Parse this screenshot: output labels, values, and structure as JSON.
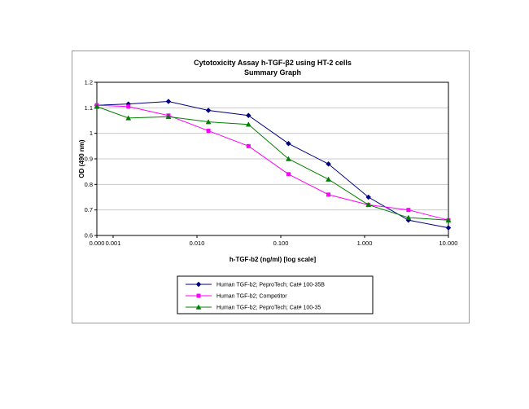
{
  "chart_data": {
    "type": "line",
    "title_line1": "Cytotoxicity Assay h-TGF-β2 using HT-2 cells",
    "title_line2": "Summary Graph",
    "xlabel": "h-TGF-b2 (ng/ml) [log scale]",
    "ylabel": "OD (490 nm)",
    "x_scale": "log",
    "ylim": [
      0.6,
      1.2
    ],
    "ytick_values": [
      1.2,
      1.1,
      1.0,
      0.9,
      0.8,
      0.7,
      0.6
    ],
    "ytick_labels": [
      "1.2",
      "1.1",
      "1",
      "0.9",
      "0.8",
      "0.7",
      "0.6"
    ],
    "xtick_values": [
      0,
      0.001,
      0.01,
      0.1,
      1,
      10
    ],
    "xtick_labels": [
      "0.000",
      "0.001",
      "0.010",
      "0.100",
      "1.000",
      "10.000"
    ],
    "x": [
      0,
      0.00152,
      0.00457,
      0.0137,
      0.0412,
      0.1235,
      0.3704,
      1.111,
      3.333,
      10
    ],
    "grid": "horizontal",
    "legend_position": "bottom-center",
    "series": [
      {
        "name": "Human TGF-b2; PeproTech; Cat# 100-35B",
        "color": "#000080",
        "marker": "diamond",
        "values": [
          1.11,
          1.115,
          1.125,
          1.09,
          1.07,
          0.96,
          0.88,
          0.75,
          0.66,
          0.63
        ]
      },
      {
        "name": "Human TGF-b2; Competitor",
        "color": "#FF00FF",
        "marker": "square",
        "values": [
          1.11,
          1.105,
          1.07,
          1.01,
          0.95,
          0.84,
          0.76,
          0.72,
          0.7,
          0.66
        ]
      },
      {
        "name": "Human TGF-b2; PeproTech; Cat# 100-35",
        "color": "#008000",
        "marker": "triangle",
        "values": [
          1.105,
          1.06,
          1.065,
          1.045,
          1.035,
          0.9,
          0.82,
          0.72,
          0.67,
          0.66
        ]
      }
    ]
  }
}
